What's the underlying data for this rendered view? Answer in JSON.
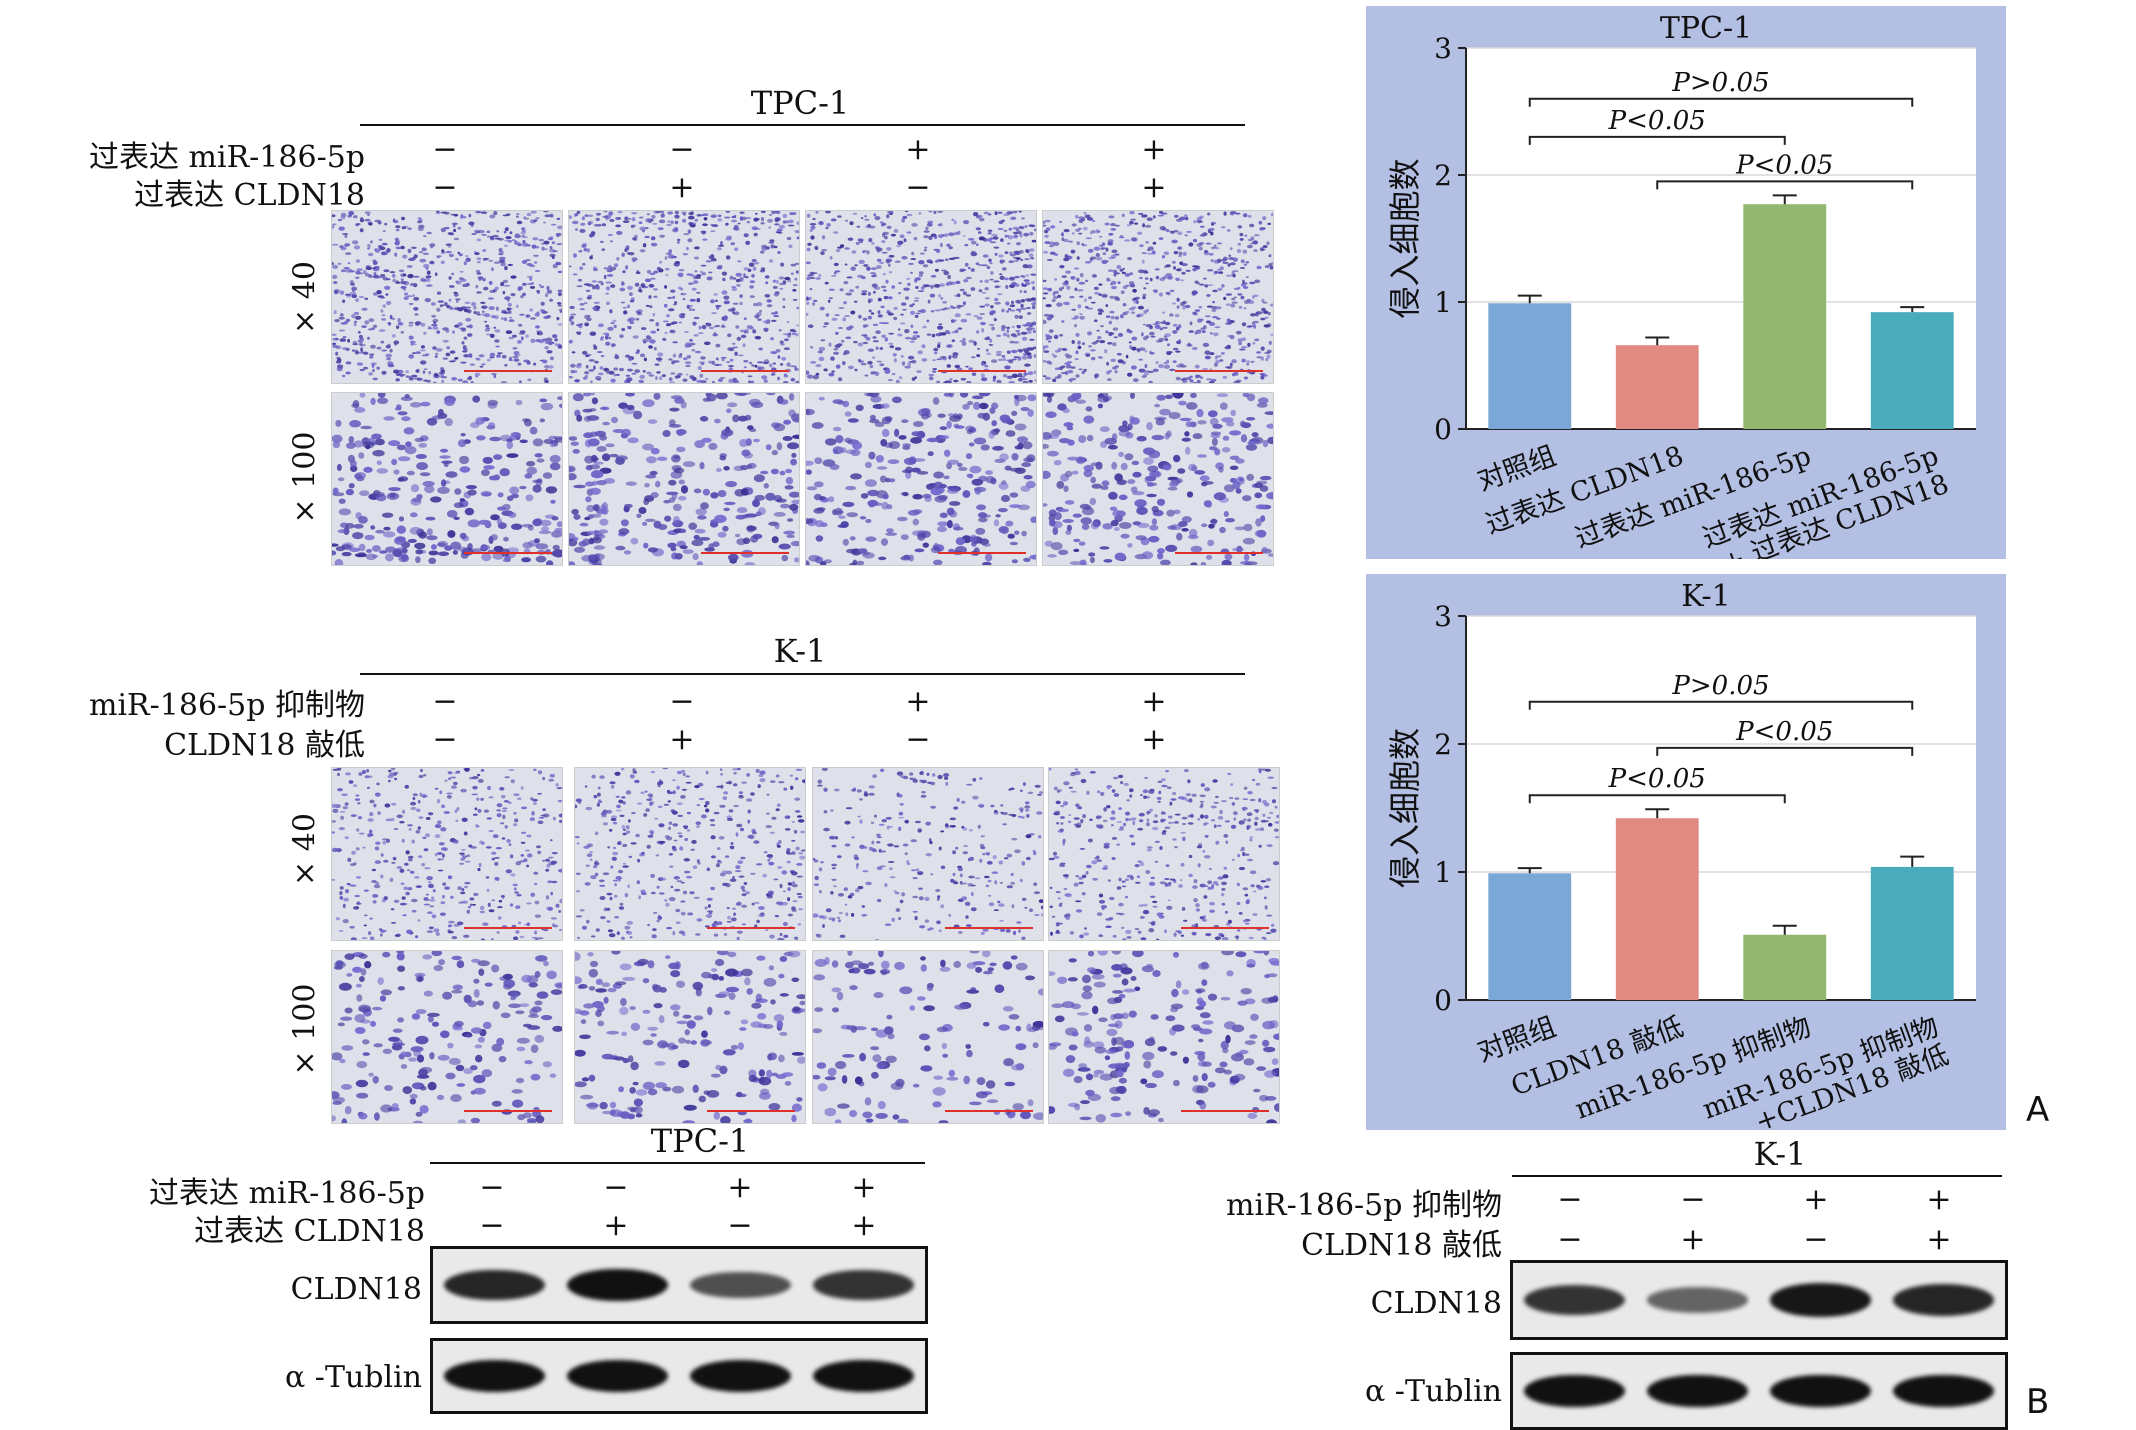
{
  "micro_tpc": {
    "title": "TPC-1",
    "row1_label": "过表达 miR-186-5p",
    "row2_label": "过表达 CLDN18",
    "row1_signs": [
      "−",
      "−",
      "+",
      "+"
    ],
    "row2_signs": [
      "−",
      "+",
      "−",
      "+"
    ],
    "mag1": "× 40",
    "mag2": "× 100"
  },
  "micro_k1": {
    "title": "K-1",
    "row1_label": "miR-186-5p 抑制物",
    "row2_label": "CLDN18 敲低",
    "row1_signs": [
      "−",
      "−",
      "+",
      "+"
    ],
    "row2_signs": [
      "−",
      "+",
      "−",
      "+"
    ],
    "mag1": "× 40",
    "mag2": "× 100"
  },
  "chart_data": [
    {
      "type": "bar",
      "title": "TPC-1",
      "ylabel": "侵入细胞数",
      "ylim": [
        0,
        3
      ],
      "yticks": [
        "0",
        "1",
        "2",
        "3"
      ],
      "grid": true,
      "categories": [
        "对照组",
        "过表达 CLDN18",
        "过表达 miR-186-5p",
        "过表达 miR-186-5p\n+ 过表达 CLDN18"
      ],
      "values": [
        0.99,
        0.66,
        1.77,
        0.92
      ],
      "errors": [
        0.06,
        0.06,
        0.07,
        0.04
      ],
      "colors": [
        "#7ba7d8",
        "#e08a82",
        "#93b76f",
        "#4aacbb"
      ],
      "annotations": [
        {
          "text": "P>0.05",
          "from": 0,
          "to": 3,
          "level": 2.6
        },
        {
          "text": "P<0.05",
          "from": 0,
          "to": 2,
          "level": 2.3
        },
        {
          "text": "P<0.05",
          "from": 1,
          "to": 3,
          "level": 1.95
        }
      ]
    },
    {
      "type": "bar",
      "title": "K-1",
      "ylabel": "侵入细胞数",
      "ylim": [
        0,
        3
      ],
      "yticks": [
        "0",
        "1",
        "2",
        "3"
      ],
      "grid": true,
      "categories": [
        "对照组",
        "CLDN18 敲低",
        "miR-186-5p 抑制物",
        "miR-186-5p 抑制物\n+CLDN18 敲低"
      ],
      "values": [
        0.99,
        1.42,
        0.51,
        1.04
      ],
      "errors": [
        0.04,
        0.07,
        0.07,
        0.08
      ],
      "colors": [
        "#7ba7d8",
        "#e08a82",
        "#93b76f",
        "#4aacbb"
      ],
      "annotations": [
        {
          "text": "P>0.05",
          "from": 0,
          "to": 3,
          "level": 2.33
        },
        {
          "text": "P<0.05",
          "from": 1,
          "to": 3,
          "level": 1.97
        },
        {
          "text": "P<0.05",
          "from": 0,
          "to": 2,
          "level": 1.6
        }
      ]
    }
  ],
  "wb_tpc": {
    "title": "TPC-1",
    "row1_label": "过表达 miR-186-5p",
    "row2_label": "过表达 CLDN18",
    "row1_signs": [
      "−",
      "−",
      "+",
      "+"
    ],
    "row2_signs": [
      "−",
      "+",
      "−",
      "+"
    ],
    "band1_label": "CLDN18",
    "band2_label": "α -Tublin",
    "band1_intensity": [
      0.85,
      1.0,
      0.55,
      0.75
    ],
    "band2_intensity": [
      1.0,
      1.0,
      1.0,
      1.0
    ]
  },
  "wb_k1": {
    "title": "K-1",
    "row1_label": "miR-186-5p 抑制物",
    "row2_label": "CLDN18 敲低",
    "row1_signs": [
      "−",
      "−",
      "+",
      "+"
    ],
    "row2_signs": [
      "−",
      "+",
      "−",
      "+"
    ],
    "band1_label": "CLDN18",
    "band2_label": "α -Tublin",
    "band1_intensity": [
      0.75,
      0.4,
      0.95,
      0.85
    ],
    "band2_intensity": [
      1.0,
      1.0,
      1.0,
      1.0
    ]
  },
  "panel_labels": {
    "a": "A",
    "b": "B"
  },
  "colors": {
    "panel_bg": "#b3bfe3",
    "stain": "#4a3f9a",
    "scalebar": "#e0302a"
  }
}
